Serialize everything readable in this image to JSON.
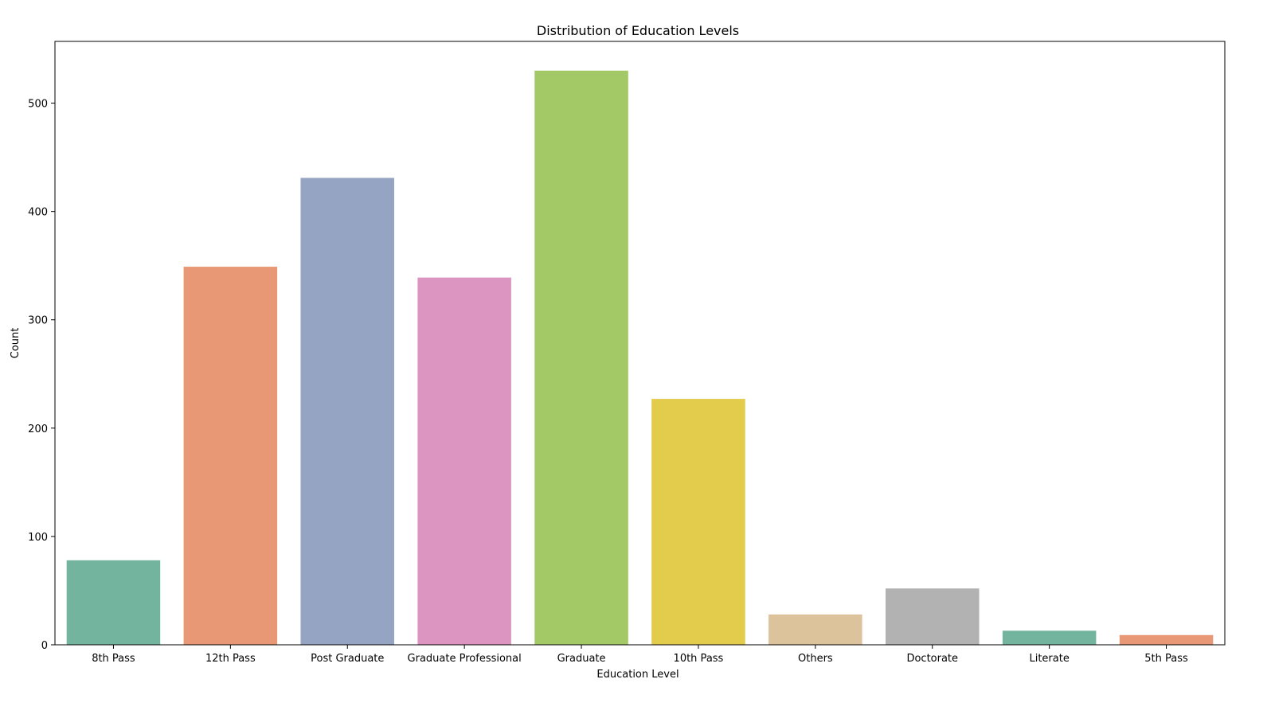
{
  "chart_data": {
    "type": "bar",
    "title": "Distribution of Education Levels",
    "xlabel": "Education Level",
    "ylabel": "Count",
    "categories": [
      "8th Pass",
      "12th Pass",
      "Post Graduate",
      "Graduate Professional",
      "Graduate",
      "10th Pass",
      "Others",
      "Doctorate",
      "Literate",
      "5th Pass"
    ],
    "values": [
      78,
      349,
      431,
      339,
      530,
      227,
      28,
      52,
      13,
      9
    ],
    "colors": [
      "#73b49f",
      "#e89874",
      "#94a4c2",
      "#dc95c0",
      "#a3c966",
      "#e3cb4b",
      "#dcc39b",
      "#b2b2b2",
      "#73b49f",
      "#e89874"
    ],
    "ylim": [
      0,
      557
    ],
    "yticks": [
      0,
      100,
      200,
      300,
      400,
      500
    ],
    "grid": false,
    "legend": "none"
  }
}
